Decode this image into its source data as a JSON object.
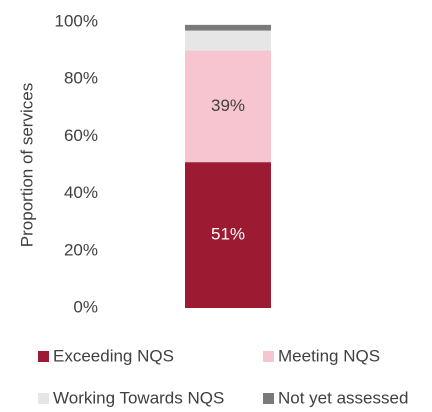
{
  "chart_data": {
    "type": "stacked_bar",
    "y_label": "Proportion of services",
    "categories": [
      null
    ],
    "series": [
      {
        "name": "Exceeding NQS",
        "color": "#9c1a32",
        "values": [
          51
        ],
        "value_labels": [
          "51%"
        ],
        "label_color": "#ffffff"
      },
      {
        "name": "Meeting NQS",
        "color": "#f7c5cf",
        "values": [
          39
        ],
        "value_labels": [
          "39%"
        ],
        "label_color": "#404040"
      },
      {
        "name": "Working Towards NQS",
        "color": "#e6e6e6",
        "values": [
          7
        ]
      },
      {
        "name": "Not yet assessed",
        "color": "#7a7a7a",
        "values": [
          2
        ]
      }
    ],
    "ylim": [
      0,
      100
    ],
    "yticks": [
      {
        "value": 0,
        "label": "0%"
      },
      {
        "value": 20,
        "label": "20%"
      },
      {
        "value": 40,
        "label": "40%"
      },
      {
        "value": 60,
        "label": "60%"
      },
      {
        "value": 80,
        "label": "80%"
      },
      {
        "value": 100,
        "label": "100%"
      }
    ],
    "grid": false
  }
}
